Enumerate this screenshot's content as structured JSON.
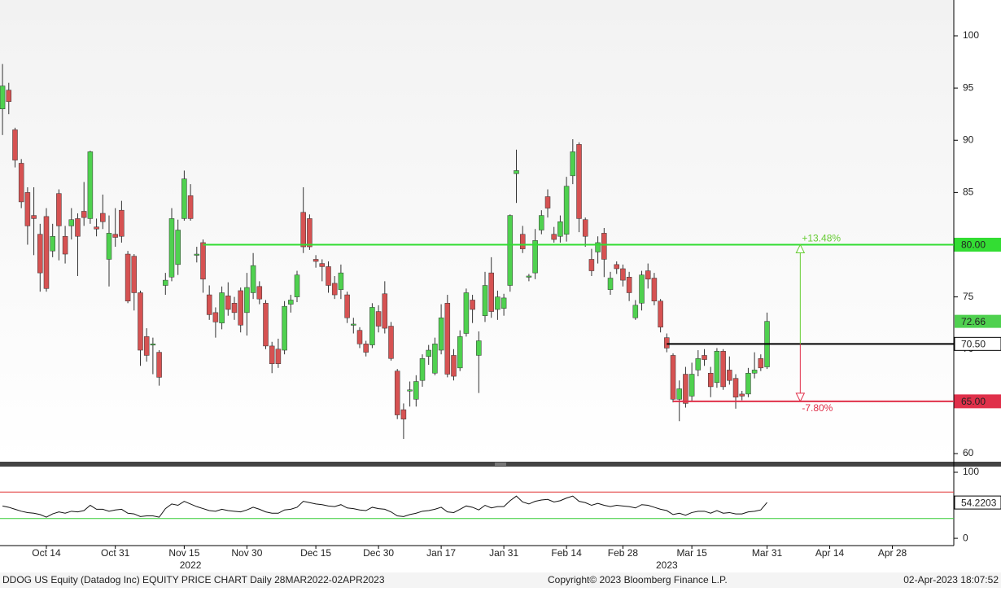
{
  "chart_data": [
    {
      "type": "candlestick",
      "xlim": [
        -0.4,
        151.8
      ],
      "xticks": [
        {
          "value": 7,
          "label": "Oct 14"
        },
        {
          "value": 18,
          "label": "Oct 31"
        },
        {
          "value": 29,
          "label": "Nov 15"
        },
        {
          "value": 39,
          "label": "Nov 30"
        },
        {
          "value": 50,
          "label": "Dec 15"
        },
        {
          "value": 60,
          "label": "Dec 30"
        },
        {
          "value": 70,
          "label": "Jan 17"
        },
        {
          "value": 80,
          "label": "Jan 31"
        },
        {
          "value": 90,
          "label": "Feb 14"
        },
        {
          "value": 99,
          "label": "Feb 28"
        },
        {
          "value": 110,
          "label": "Mar 15"
        },
        {
          "value": 122,
          "label": "Mar 31"
        },
        {
          "value": 132,
          "label": "Apr 14"
        },
        {
          "value": 142,
          "label": "Apr 28"
        }
      ],
      "year_ticks": [
        {
          "value": 30,
          "label": "2022"
        },
        {
          "value": 106,
          "label": "2023"
        }
      ],
      "ylim": [
        59.22,
        103.43
      ],
      "yticks": [
        60,
        65,
        70,
        75,
        80,
        85,
        90,
        95,
        100
      ],
      "up_color": "#4fd14f",
      "down_color": "#d65252",
      "open": [
        93,
        94.8,
        91,
        87.8,
        85,
        82.8,
        81,
        82.7,
        79.4,
        84.9,
        80.8,
        81.8,
        82.5,
        83.2,
        82.5,
        81.7,
        83,
        78.6,
        81,
        83.3,
        79.1,
        78.9,
        75.4,
        71.2,
        70.4,
        69.7,
        76.1,
        76.9,
        78.1,
        82.5,
        84.7,
        79,
        80.2,
        75.2,
        73.5,
        72.5,
        75.1,
        74.4,
        75.6,
        73.5,
        75.4,
        76,
        74.4,
        70.3,
        70,
        69.9,
        74.3,
        75,
        83.1,
        82.5,
        78.6,
        78.2,
        77.9,
        76.3,
        75.7,
        75.2,
        72.3,
        71.8,
        70.5,
        70.4,
        73.6,
        75.3,
        72.2,
        67.9,
        64.2,
        66,
        65.2,
        67,
        69.3,
        67.7,
        69.9,
        74.4,
        69.4,
        68.2,
        71.5,
        74.7,
        69.4,
        73.2,
        77.3,
        73.8,
        73.9,
        76.1,
        86.8,
        81,
        76.9,
        77.3,
        81.4,
        84.6,
        81,
        80.8,
        81,
        86.6,
        89.6,
        82.4,
        78.6,
        79.3,
        81.1,
        75.7,
        78.1,
        77.7,
        76.9,
        73,
        74.4,
        77.5,
        76.8,
        74.6,
        71.1,
        69.4,
        65.2,
        67.6,
        65.5,
        68,
        69.4,
        67.7,
        66.8,
        69.8,
        68,
        67.2,
        65.7,
        65.7,
        67.7,
        69.1,
        68.3
      ],
      "high": [
        97.3,
        95.5,
        91.2,
        88.2,
        85.5,
        85.5,
        82,
        83.5,
        82,
        85.3,
        81.8,
        83.5,
        83,
        86,
        89,
        82.5,
        84.8,
        82.8,
        83.5,
        84.2,
        79.4,
        79.1,
        75.6,
        72,
        71.1,
        69.9,
        77.3,
        83.5,
        82.4,
        87.1,
        85.8,
        79.8,
        80.5,
        76.1,
        74,
        76,
        76.4,
        75,
        75.9,
        77.3,
        79.2,
        76.5,
        74.7,
        70.7,
        71,
        74.6,
        75.2,
        77.5,
        85.5,
        82.9,
        79,
        78.6,
        78.4,
        77,
        78.1,
        75.5,
        73,
        72.1,
        70.8,
        74.4,
        74.2,
        76.5,
        72.6,
        68.1,
        64.8,
        66.9,
        67.5,
        69.5,
        70.4,
        71.1,
        74.3,
        75.2,
        70,
        71.8,
        75.8,
        75.2,
        71.7,
        77.4,
        78.8,
        75.6,
        75.3,
        82.9,
        89.1,
        81.8,
        77.2,
        81.5,
        83.3,
        85.3,
        81.7,
        82.8,
        86.5,
        90.1,
        89.8,
        82.6,
        79.6,
        80.8,
        81.6,
        77.4,
        78.4,
        78.1,
        77.4,
        74.7,
        77.5,
        78.2,
        77.3,
        74.8,
        71.5,
        69.6,
        67,
        68.3,
        68.7,
        69.9,
        70,
        68.3,
        70.1,
        70,
        69.3,
        67.6,
        66,
        68.2,
        69.7,
        69.5,
        73.5
      ],
      "low": [
        90.5,
        92.5,
        87.4,
        83.5,
        80,
        79,
        75.5,
        75.5,
        78.8,
        78.5,
        78.2,
        80.5,
        77,
        81.8,
        82,
        80.8,
        81.5,
        76,
        79.8,
        80.2,
        74.4,
        73.7,
        68.4,
        68.8,
        67.6,
        66.5,
        75.2,
        76.5,
        77.1,
        82.3,
        82.3,
        78.3,
        75.4,
        72.8,
        71.1,
        71.9,
        73.2,
        72.8,
        71.6,
        71.3,
        74.8,
        74.3,
        70,
        67.7,
        68.2,
        69.5,
        73.5,
        74.5,
        79.2,
        79.5,
        77.8,
        76.5,
        75.4,
        74.8,
        74.8,
        72.5,
        71.5,
        70.1,
        69.3,
        70.1,
        71.6,
        71.5,
        68.9,
        63.3,
        61.4,
        64.5,
        64.5,
        66.4,
        68.5,
        67.5,
        69.5,
        67.3,
        67,
        67.9,
        71.2,
        72.5,
        65.8,
        72.6,
        73,
        72.8,
        73.2,
        75.5,
        84,
        79.2,
        76.5,
        76.7,
        81,
        82.6,
        80.2,
        80.2,
        80.3,
        85.8,
        81.2,
        79.8,
        77,
        78.2,
        76.9,
        75.2,
        77.2,
        76,
        74.6,
        72.8,
        73.7,
        75.8,
        74.2,
        71.6,
        69.7,
        64.9,
        63.1,
        64.4,
        65,
        67.4,
        68.4,
        65.4,
        66.3,
        66.1,
        66.6,
        64.3,
        65.1,
        65.4,
        67.2,
        67.9,
        68.1
      ],
      "close": [
        95.2,
        93.7,
        88.1,
        84.1,
        81.8,
        82.5,
        77.3,
        75.8,
        80.8,
        81.8,
        79.1,
        82.4,
        80.8,
        82.6,
        88.9,
        81.5,
        82.2,
        81.1,
        80.7,
        80.8,
        74.6,
        75.4,
        69.9,
        69.4,
        70.5,
        67.3,
        76.6,
        82.5,
        81.4,
        86.3,
        82.5,
        79.1,
        76.7,
        73.3,
        72.6,
        75.4,
        73.8,
        73.5,
        72.3,
        75.9,
        78,
        74.8,
        70.3,
        68.6,
        68.6,
        74.1,
        74.7,
        77.1,
        79.8,
        79.8,
        78.4,
        77.9,
        76.1,
        75.2,
        77.3,
        73,
        72.4,
        70.5,
        69.7,
        74,
        72.2,
        72,
        69.1,
        63.7,
        63.3,
        66.1,
        66.9,
        69.1,
        69.9,
        70.5,
        73,
        67.6,
        67.4,
        71.2,
        75.4,
        73.8,
        70.8,
        76.1,
        73.6,
        75,
        74.9,
        82.8,
        87.1,
        79.6,
        77,
        80.4,
        82.8,
        83.5,
        80.5,
        82.2,
        85.6,
        88.9,
        82.5,
        80.8,
        77.5,
        80.2,
        78.6,
        76.8,
        77.7,
        76.6,
        75.4,
        74.2,
        77.1,
        76.7,
        74.6,
        72.1,
        70.1,
        65.2,
        66.2,
        64.8,
        67.6,
        69.1,
        69,
        66.4,
        69.8,
        66.4,
        67,
        65.4,
        65.5,
        67.7,
        68,
        68.2,
        72.66
      ],
      "levels": [
        {
          "value": 80,
          "label": "80.00",
          "from_x": 32,
          "color": "#33dd33"
        },
        {
          "value": 70.5,
          "label": "70.50",
          "from_x": 106,
          "color": "#000000"
        },
        {
          "value": 65,
          "label": "65.00",
          "from_x": 107,
          "color": "#e0304a"
        }
      ],
      "annotations": [
        {
          "text": "+13.48%",
          "color": "#66cc33"
        },
        {
          "text": "-7.80%",
          "color": "#e0304a"
        }
      ],
      "last_color": "#4fd14f"
    },
    {
      "type": "line",
      "ylim": [
        -11,
        108.6
      ],
      "yticks": [
        0,
        100
      ],
      "color": "#111111",
      "bands": [
        {
          "value": 70,
          "color": "#e03030"
        },
        {
          "value": 30,
          "color": "#33cc33"
        }
      ],
      "values": [
        49,
        47,
        44,
        41,
        39,
        38,
        36,
        32,
        37,
        40,
        38,
        41,
        40,
        42,
        50,
        44,
        44,
        41,
        43,
        44,
        38,
        37,
        33,
        34,
        34,
        32,
        45,
        52,
        50,
        56,
        52,
        48,
        45,
        42,
        41,
        44,
        42,
        41,
        40,
        43,
        47,
        44,
        40,
        38,
        38,
        43,
        44,
        47,
        56,
        54,
        52,
        51,
        49,
        48,
        51,
        46,
        45,
        43,
        42,
        47,
        45,
        44,
        40,
        34,
        33,
        36,
        38,
        41,
        42,
        44,
        47,
        40,
        39,
        44,
        49,
        47,
        43,
        50,
        46,
        48,
        48,
        57,
        64,
        55,
        52,
        56,
        58,
        59,
        55,
        57,
        61,
        64,
        56,
        54,
        50,
        53,
        50,
        48,
        50,
        49,
        48,
        46,
        51,
        50,
        47,
        44,
        42,
        36,
        38,
        35,
        39,
        41,
        41,
        38,
        42,
        38,
        39,
        37,
        37,
        40,
        41,
        43,
        54.2203
      ]
    }
  ],
  "footer": {
    "left": "DDOG US Equity (Datadog Inc) EQUITY PRICE CHART  Daily 28MAR2022-02APR2023",
    "center": "Copyright© 2023 Bloomberg Finance L.P.",
    "right": "02-Apr-2023 18:07:52"
  }
}
